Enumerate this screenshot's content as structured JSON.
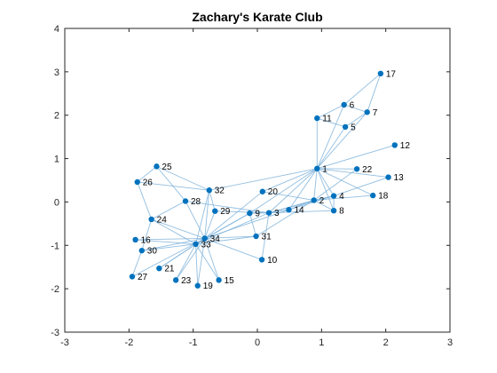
{
  "chart_data": {
    "type": "scatter",
    "title": "Zachary's Karate Club",
    "xlabel": "",
    "ylabel": "",
    "xlim": [
      -3,
      3
    ],
    "ylim": [
      -3,
      4
    ],
    "xticks": [
      "-3",
      "-2",
      "-1",
      "0",
      "1",
      "2",
      "3"
    ],
    "yticks": [
      "-3",
      "-2",
      "-1",
      "0",
      "1",
      "2",
      "3",
      "4"
    ],
    "grid": false,
    "colors": {
      "node": "#0072BD",
      "edge": "#7FB3DB",
      "axes": "#262626"
    },
    "nodes": [
      {
        "label": "1",
        "x": 0.93,
        "y": 0.77
      },
      {
        "label": "2",
        "x": 0.88,
        "y": 0.04
      },
      {
        "label": "3",
        "x": 0.18,
        "y": -0.25
      },
      {
        "label": "4",
        "x": 1.19,
        "y": 0.14
      },
      {
        "label": "5",
        "x": 1.37,
        "y": 1.73
      },
      {
        "label": "6",
        "x": 1.35,
        "y": 2.24
      },
      {
        "label": "7",
        "x": 1.71,
        "y": 2.07
      },
      {
        "label": "8",
        "x": 1.19,
        "y": -0.2
      },
      {
        "label": "9",
        "x": -0.12,
        "y": -0.26
      },
      {
        "label": "10",
        "x": 0.07,
        "y": -1.33
      },
      {
        "label": "11",
        "x": 0.93,
        "y": 1.93
      },
      {
        "label": "12",
        "x": 2.14,
        "y": 1.31
      },
      {
        "label": "13",
        "x": 2.04,
        "y": 0.57
      },
      {
        "label": "14",
        "x": 0.49,
        "y": -0.18
      },
      {
        "label": "15",
        "x": -0.6,
        "y": -1.8
      },
      {
        "label": "16",
        "x": -1.9,
        "y": -0.87
      },
      {
        "label": "17",
        "x": 1.92,
        "y": 2.96
      },
      {
        "label": "18",
        "x": 1.8,
        "y": 0.15
      },
      {
        "label": "19",
        "x": -0.93,
        "y": -1.93
      },
      {
        "label": "20",
        "x": 0.08,
        "y": 0.24
      },
      {
        "label": "21",
        "x": -1.53,
        "y": -1.53
      },
      {
        "label": "22",
        "x": 1.55,
        "y": 0.76
      },
      {
        "label": "23",
        "x": -1.27,
        "y": -1.8
      },
      {
        "label": "24",
        "x": -1.65,
        "y": -0.4
      },
      {
        "label": "25",
        "x": -1.57,
        "y": 0.82
      },
      {
        "label": "26",
        "x": -1.87,
        "y": 0.46
      },
      {
        "label": "27",
        "x": -1.95,
        "y": -1.72
      },
      {
        "label": "28",
        "x": -1.12,
        "y": 0.02
      },
      {
        "label": "29",
        "x": -0.66,
        "y": -0.21
      },
      {
        "label": "30",
        "x": -1.8,
        "y": -1.12
      },
      {
        "label": "31",
        "x": -0.02,
        "y": -0.79
      },
      {
        "label": "32",
        "x": -0.75,
        "y": 0.27
      },
      {
        "label": "33",
        "x": -0.96,
        "y": -0.97
      },
      {
        "label": "34",
        "x": -0.82,
        "y": -0.84
      }
    ],
    "edges": [
      [
        1,
        2
      ],
      [
        1,
        3
      ],
      [
        1,
        4
      ],
      [
        1,
        5
      ],
      [
        1,
        6
      ],
      [
        1,
        7
      ],
      [
        1,
        8
      ],
      [
        1,
        9
      ],
      [
        1,
        11
      ],
      [
        1,
        12
      ],
      [
        1,
        13
      ],
      [
        1,
        14
      ],
      [
        1,
        18
      ],
      [
        1,
        20
      ],
      [
        1,
        22
      ],
      [
        1,
        32
      ],
      [
        2,
        3
      ],
      [
        2,
        4
      ],
      [
        2,
        8
      ],
      [
        2,
        14
      ],
      [
        2,
        18
      ],
      [
        2,
        20
      ],
      [
        2,
        22
      ],
      [
        2,
        31
      ],
      [
        3,
        4
      ],
      [
        3,
        8
      ],
      [
        3,
        9
      ],
      [
        3,
        10
      ],
      [
        3,
        14
      ],
      [
        3,
        28
      ],
      [
        3,
        29
      ],
      [
        3,
        33
      ],
      [
        4,
        8
      ],
      [
        4,
        13
      ],
      [
        4,
        14
      ],
      [
        5,
        7
      ],
      [
        5,
        11
      ],
      [
        6,
        7
      ],
      [
        6,
        11
      ],
      [
        6,
        17
      ],
      [
        7,
        17
      ],
      [
        9,
        31
      ],
      [
        9,
        33
      ],
      [
        9,
        34
      ],
      [
        10,
        34
      ],
      [
        14,
        34
      ],
      [
        15,
        33
      ],
      [
        15,
        34
      ],
      [
        16,
        33
      ],
      [
        16,
        34
      ],
      [
        19,
        33
      ],
      [
        19,
        34
      ],
      [
        20,
        34
      ],
      [
        21,
        33
      ],
      [
        21,
        34
      ],
      [
        23,
        33
      ],
      [
        23,
        34
      ],
      [
        24,
        26
      ],
      [
        24,
        28
      ],
      [
        24,
        30
      ],
      [
        24,
        33
      ],
      [
        24,
        34
      ],
      [
        25,
        26
      ],
      [
        25,
        28
      ],
      [
        25,
        32
      ],
      [
        26,
        32
      ],
      [
        27,
        30
      ],
      [
        27,
        34
      ],
      [
        28,
        34
      ],
      [
        29,
        32
      ],
      [
        29,
        34
      ],
      [
        30,
        33
      ],
      [
        30,
        34
      ],
      [
        31,
        33
      ],
      [
        31,
        34
      ],
      [
        32,
        33
      ],
      [
        32,
        34
      ],
      [
        33,
        34
      ]
    ]
  }
}
